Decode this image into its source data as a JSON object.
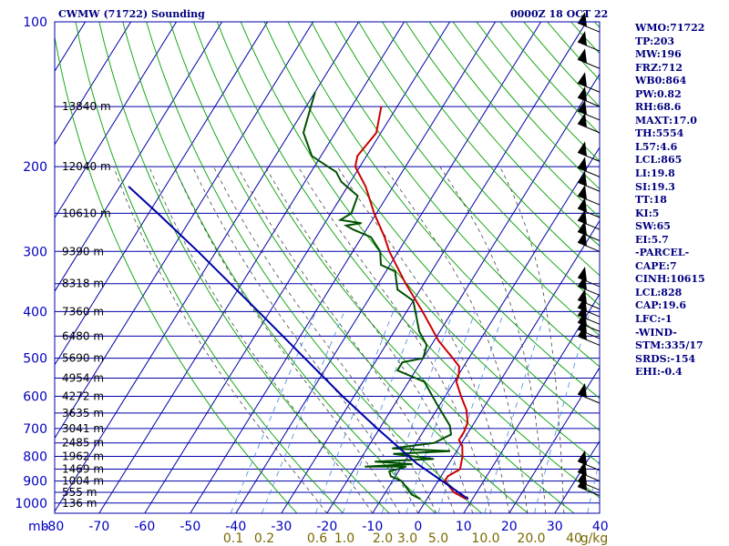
{
  "title_left": "CWMW (71722) Sounding",
  "title_right": "0000Z 18 OCT 22",
  "chart_data": {
    "type": "line",
    "title": "CWMW (71722) Sounding",
    "datetime": "0000Z 18 OCT 22",
    "pressure_ticks": [
      "100",
      "200",
      "300",
      "400",
      "500",
      "600",
      "700",
      "800",
      "900",
      "1000"
    ],
    "pressure_unit": "mb",
    "temperature_ticks": [
      "-80",
      "-70",
      "-60",
      "-50",
      "-40",
      "-30",
      "-20",
      "-10",
      "0",
      "10",
      "20",
      "30",
      "40"
    ],
    "mixing_ratio_ticks": [
      "0.1",
      "0.2",
      "0.6",
      "1.0",
      "2.0",
      "3.0",
      "5.0",
      "10.0",
      "20.0",
      "40",
      "g/kg"
    ],
    "height_labels": [
      {
        "p": 150,
        "label": "13840 m"
      },
      {
        "p": 200,
        "label": "12040 m"
      },
      {
        "p": 250,
        "label": "10610 m"
      },
      {
        "p": 300,
        "label": "9390 m"
      },
      {
        "p": 350,
        "label": "8318 m"
      },
      {
        "p": 400,
        "label": "7360 m"
      },
      {
        "p": 450,
        "label": "6480 m"
      },
      {
        "p": 500,
        "label": "5690 m"
      },
      {
        "p": 550,
        "label": "4954 m"
      },
      {
        "p": 600,
        "label": "4272 m"
      },
      {
        "p": 650,
        "label": "3635 m"
      },
      {
        "p": 700,
        "label": "3041 m"
      },
      {
        "p": 750,
        "label": "2485 m"
      },
      {
        "p": 800,
        "label": "1962 m"
      },
      {
        "p": 850,
        "label": "1469 m"
      },
      {
        "p": 900,
        "label": "1004 m"
      },
      {
        "p": 950,
        "label": "555 m"
      },
      {
        "p": 1000,
        "label": "136 m"
      }
    ],
    "series": [
      {
        "name": "Temperature",
        "color": "#cc0000",
        "points": [
          {
            "p": 980,
            "t": 8.5
          },
          {
            "p": 950,
            "t": 5.0
          },
          {
            "p": 900,
            "t": 1.5
          },
          {
            "p": 880,
            "t": 1.5
          },
          {
            "p": 850,
            "t": 3.2
          },
          {
            "p": 800,
            "t": 2.0
          },
          {
            "p": 760,
            "t": 0.5
          },
          {
            "p": 740,
            "t": -1.0
          },
          {
            "p": 710,
            "t": -1.0
          },
          {
            "p": 680,
            "t": -1.5
          },
          {
            "p": 640,
            "t": -3.5
          },
          {
            "p": 600,
            "t": -6.5
          },
          {
            "p": 560,
            "t": -9.5
          },
          {
            "p": 540,
            "t": -10.0
          },
          {
            "p": 520,
            "t": -11.0
          },
          {
            "p": 500,
            "t": -13.5
          },
          {
            "p": 460,
            "t": -19.0
          },
          {
            "p": 400,
            "t": -26.5
          },
          {
            "p": 350,
            "t": -34.0
          },
          {
            "p": 300,
            "t": -42.0
          },
          {
            "p": 280,
            "t": -45.0
          },
          {
            "p": 250,
            "t": -50.5
          },
          {
            "p": 220,
            "t": -56.0
          },
          {
            "p": 200,
            "t": -61.0
          },
          {
            "p": 190,
            "t": -62.0
          },
          {
            "p": 170,
            "t": -61.0
          },
          {
            "p": 150,
            "t": -63.5
          }
        ]
      },
      {
        "name": "Dewpoint",
        "color": "#005000",
        "points": [
          {
            "p": 980,
            "t": -1.5
          },
          {
            "p": 960,
            "t": -4.0
          },
          {
            "p": 900,
            "t": -8.0
          },
          {
            "p": 880,
            "t": -11.0
          },
          {
            "p": 860,
            "t": -12.0
          },
          {
            "p": 840,
            "t": -9.0
          },
          {
            "p": 840,
            "t": -18.0
          },
          {
            "p": 830,
            "t": -8.0
          },
          {
            "p": 820,
            "t": -16.5
          },
          {
            "p": 810,
            "t": -4.0
          },
          {
            "p": 790,
            "t": -13.5
          },
          {
            "p": 780,
            "t": -1.5
          },
          {
            "p": 770,
            "t": -14.5
          },
          {
            "p": 750,
            "t": -6.0
          },
          {
            "p": 720,
            "t": -3.5
          },
          {
            "p": 690,
            "t": -5.0
          },
          {
            "p": 620,
            "t": -11.0
          },
          {
            "p": 560,
            "t": -16.5
          },
          {
            "p": 530,
            "t": -24.0
          },
          {
            "p": 510,
            "t": -24.0
          },
          {
            "p": 500,
            "t": -20.0
          },
          {
            "p": 470,
            "t": -21.0
          },
          {
            "p": 440,
            "t": -24.5
          },
          {
            "p": 380,
            "t": -30.0
          },
          {
            "p": 360,
            "t": -35.0
          },
          {
            "p": 330,
            "t": -38.0
          },
          {
            "p": 320,
            "t": -42.0
          },
          {
            "p": 300,
            "t": -44.0
          },
          {
            "p": 280,
            "t": -48.0
          },
          {
            "p": 270,
            "t": -53.0
          },
          {
            "p": 265,
            "t": -55.0
          },
          {
            "p": 262,
            "t": -52.0
          },
          {
            "p": 258,
            "t": -57.0
          },
          {
            "p": 250,
            "t": -55.5
          },
          {
            "p": 230,
            "t": -56.5
          },
          {
            "p": 215,
            "t": -62.0
          },
          {
            "p": 205,
            "t": -64.5
          },
          {
            "p": 200,
            "t": -67.0
          },
          {
            "p": 190,
            "t": -72.0
          },
          {
            "p": 170,
            "t": -77.0
          },
          {
            "p": 140,
            "t": -80.0
          }
        ]
      },
      {
        "name": "Parcel",
        "color": "#0000aa",
        "points": [
          {
            "p": 980,
            "t": 9.0
          },
          {
            "p": 828,
            "t": -7.0
          },
          {
            "p": 700,
            "t": -20.5
          },
          {
            "p": 600,
            "t": -32.5
          },
          {
            "p": 500,
            "t": -46.0
          },
          {
            "p": 400,
            "t": -62.5
          },
          {
            "p": 300,
            "t": -84.0
          },
          {
            "p": 250,
            "t": -98.0
          },
          {
            "p": 220,
            "t": -108.0
          }
        ]
      }
    ],
    "wind_barbs": [
      {
        "p": 965
      },
      {
        "p": 940
      },
      {
        "p": 900
      },
      {
        "p": 855
      },
      {
        "p": 620
      },
      {
        "p": 470
      },
      {
        "p": 455
      },
      {
        "p": 440
      },
      {
        "p": 425
      },
      {
        "p": 410
      },
      {
        "p": 395
      },
      {
        "p": 370
      },
      {
        "p": 355
      },
      {
        "p": 300
      },
      {
        "p": 285
      },
      {
        "p": 270
      },
      {
        "p": 255
      },
      {
        "p": 240
      },
      {
        "p": 225
      },
      {
        "p": 210
      },
      {
        "p": 195
      },
      {
        "p": 170
      },
      {
        "p": 160
      },
      {
        "p": 150
      },
      {
        "p": 140
      },
      {
        "p": 125
      },
      {
        "p": 115
      },
      {
        "p": 105
      }
    ],
    "grid": true,
    "colors": {
      "frame": "#0000aa",
      "isobar": "#0000aa",
      "isotherm": "#0000aa",
      "dry_adiabat": "#00a000",
      "moist_adiabat": "#444444",
      "mixing_ratio": "#4488dd",
      "text": "#000080"
    }
  },
  "indices": [
    "WMO:71722",
    "TP:203",
    "MW:196",
    "FRZ:712",
    "WB0:864",
    "PW:0.82",
    "RH:68.6",
    "MAXT:17.0",
    "TH:5554",
    "L57:4.6",
    "LCL:865",
    "LI:19.8",
    "SI:19.3",
    "TT:18",
    "KI:5",
    "SW:65",
    "EI:5.7",
    "-PARCEL-",
    "CAPE:7",
    "CINH:10615",
    "LCL:828",
    "CAP:19.6",
    "LFC:-1",
    "-WIND-",
    "STM:335/17",
    "SRDS:-154",
    "EHI:-0.4"
  ]
}
